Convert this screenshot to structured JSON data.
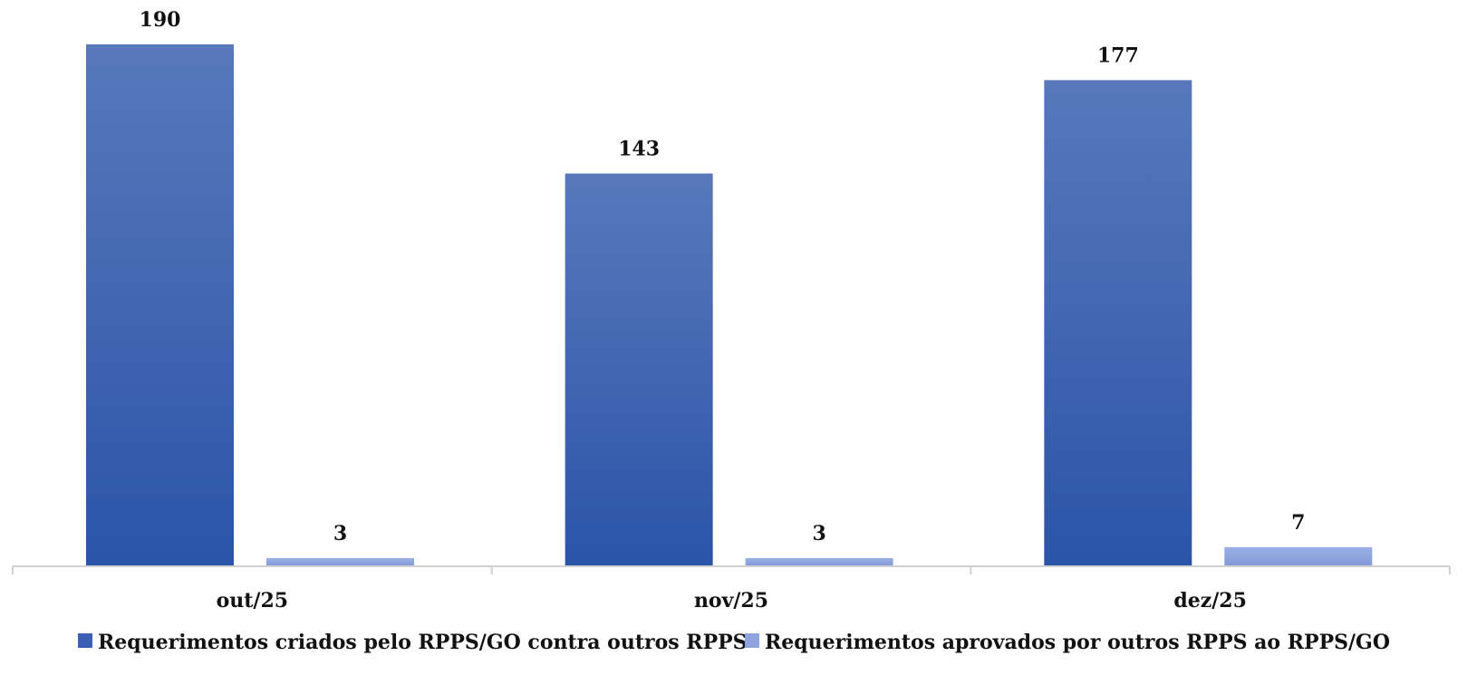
{
  "chart_data": {
    "type": "bar",
    "categories": [
      "out/25",
      "nov/25",
      "dez/25"
    ],
    "series": [
      {
        "name": "Requerimentos criados pelo RPPS/GO contra outros RPPS",
        "values": [
          190,
          143,
          177
        ],
        "color": "#3a5fb5"
      },
      {
        "name": "Requerimentos aprovados por outros RPPS ao RPPS/GO",
        "values": [
          3,
          3,
          7
        ],
        "color": "#8fa3de"
      }
    ],
    "data_labels": [
      "190",
      "143",
      "177",
      "3",
      "3",
      "7"
    ],
    "ylim": [
      0,
      190
    ],
    "grid": false,
    "y_axis_visible": false,
    "legend_position": "bottom"
  }
}
